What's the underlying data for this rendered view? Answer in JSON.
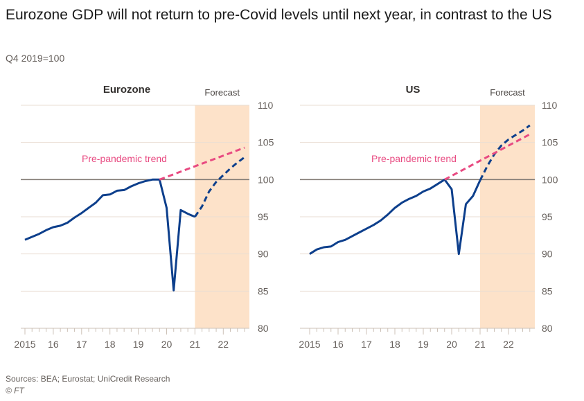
{
  "title": "Eurozone GDP will not return to pre-Covid levels until next year, in contrast to the US",
  "subtitle": "Q4 2019=100",
  "sources": "Sources: BEA; Eurostat; UniCredit Research",
  "copyright": "© FT",
  "colors": {
    "gdp_line": "#0d3f8c",
    "trend_line": "#e84a81",
    "forecast_band": "#fde2c9",
    "baseline": "#807973",
    "gridline": "#e9ddd3",
    "axis": "#ccc1b7"
  },
  "chart_data": [
    {
      "type": "line",
      "title": "Eurozone",
      "forecast_label": "Forecast",
      "trend_label": "Pre-pandemic trend",
      "xlabel": "",
      "ylabel": "",
      "ylim": [
        80,
        110
      ],
      "yticks": [
        80,
        85,
        90,
        95,
        100,
        105,
        110
      ],
      "xlim": [
        2015.0,
        2023.0
      ],
      "xticks": [
        {
          "x": 2015,
          "label": "2015"
        },
        {
          "x": 2016,
          "label": "16"
        },
        {
          "x": 2017,
          "label": "17"
        },
        {
          "x": 2018,
          "label": "18"
        },
        {
          "x": 2019,
          "label": "19"
        },
        {
          "x": 2020,
          "label": "20"
        },
        {
          "x": 2021,
          "label": "21"
        },
        {
          "x": 2022,
          "label": "22"
        }
      ],
      "forecast_start": 2021.0,
      "baseline": 100,
      "series": [
        {
          "name": "GDP (actual)",
          "style": "solid",
          "x": [
            2015.0,
            2015.25,
            2015.5,
            2015.75,
            2016.0,
            2016.25,
            2016.5,
            2016.75,
            2017.0,
            2017.25,
            2017.5,
            2017.75,
            2018.0,
            2018.25,
            2018.5,
            2018.75,
            2019.0,
            2019.25,
            2019.5,
            2019.75,
            2020.0,
            2020.25,
            2020.5,
            2020.75,
            2021.0
          ],
          "values": [
            91.9,
            92.3,
            92.7,
            93.2,
            93.6,
            93.8,
            94.2,
            94.9,
            95.5,
            96.2,
            96.9,
            97.9,
            98.0,
            98.5,
            98.6,
            99.1,
            99.5,
            99.8,
            100.0,
            100.0,
            96.2,
            85.1,
            95.9,
            95.4,
            95.0
          ]
        },
        {
          "name": "GDP (forecast)",
          "style": "dashed",
          "x": [
            2021.0,
            2021.25,
            2021.5,
            2021.75,
            2022.0,
            2022.25,
            2022.5,
            2022.75
          ],
          "values": [
            95.0,
            96.4,
            98.4,
            99.7,
            100.6,
            101.5,
            102.3,
            103.0
          ]
        },
        {
          "name": "Pre-pandemic trend",
          "style": "dashed",
          "x": [
            2019.75,
            2022.75
          ],
          "values": [
            100.0,
            104.3
          ]
        }
      ]
    },
    {
      "type": "line",
      "title": "US",
      "forecast_label": "Forecast",
      "trend_label": "Pre-pandemic trend",
      "xlabel": "",
      "ylabel": "",
      "ylim": [
        80,
        110
      ],
      "yticks": [
        80,
        85,
        90,
        95,
        100,
        105,
        110
      ],
      "xlim": [
        2015.0,
        2023.0
      ],
      "xticks": [
        {
          "x": 2015,
          "label": "2015"
        },
        {
          "x": 2016,
          "label": "16"
        },
        {
          "x": 2017,
          "label": "17"
        },
        {
          "x": 2018,
          "label": "18"
        },
        {
          "x": 2019,
          "label": "19"
        },
        {
          "x": 2020,
          "label": "20"
        },
        {
          "x": 2021,
          "label": "21"
        },
        {
          "x": 2022,
          "label": "22"
        }
      ],
      "forecast_start": 2021.0,
      "baseline": 100,
      "series": [
        {
          "name": "GDP (actual)",
          "style": "solid",
          "x": [
            2015.0,
            2015.25,
            2015.5,
            2015.75,
            2016.0,
            2016.25,
            2016.5,
            2016.75,
            2017.0,
            2017.25,
            2017.5,
            2017.75,
            2018.0,
            2018.25,
            2018.5,
            2018.75,
            2019.0,
            2019.25,
            2019.5,
            2019.75,
            2020.0,
            2020.25,
            2020.5,
            2020.75,
            2021.0
          ],
          "values": [
            90.0,
            90.6,
            90.9,
            91.0,
            91.6,
            91.9,
            92.4,
            92.9,
            93.4,
            93.9,
            94.5,
            95.3,
            96.2,
            96.9,
            97.4,
            97.8,
            98.4,
            98.8,
            99.4,
            100.0,
            98.7,
            90.0,
            96.7,
            97.8,
            99.9
          ]
        },
        {
          "name": "GDP (forecast)",
          "style": "dashed",
          "x": [
            2021.0,
            2021.25,
            2021.5,
            2021.75,
            2022.0,
            2022.25,
            2022.5,
            2022.75
          ],
          "values": [
            99.9,
            101.8,
            103.4,
            104.6,
            105.4,
            106.0,
            106.6,
            107.3
          ]
        },
        {
          "name": "Pre-pandemic trend",
          "style": "dashed",
          "x": [
            2019.75,
            2022.75
          ],
          "values": [
            100.0,
            106.1
          ]
        }
      ]
    }
  ]
}
